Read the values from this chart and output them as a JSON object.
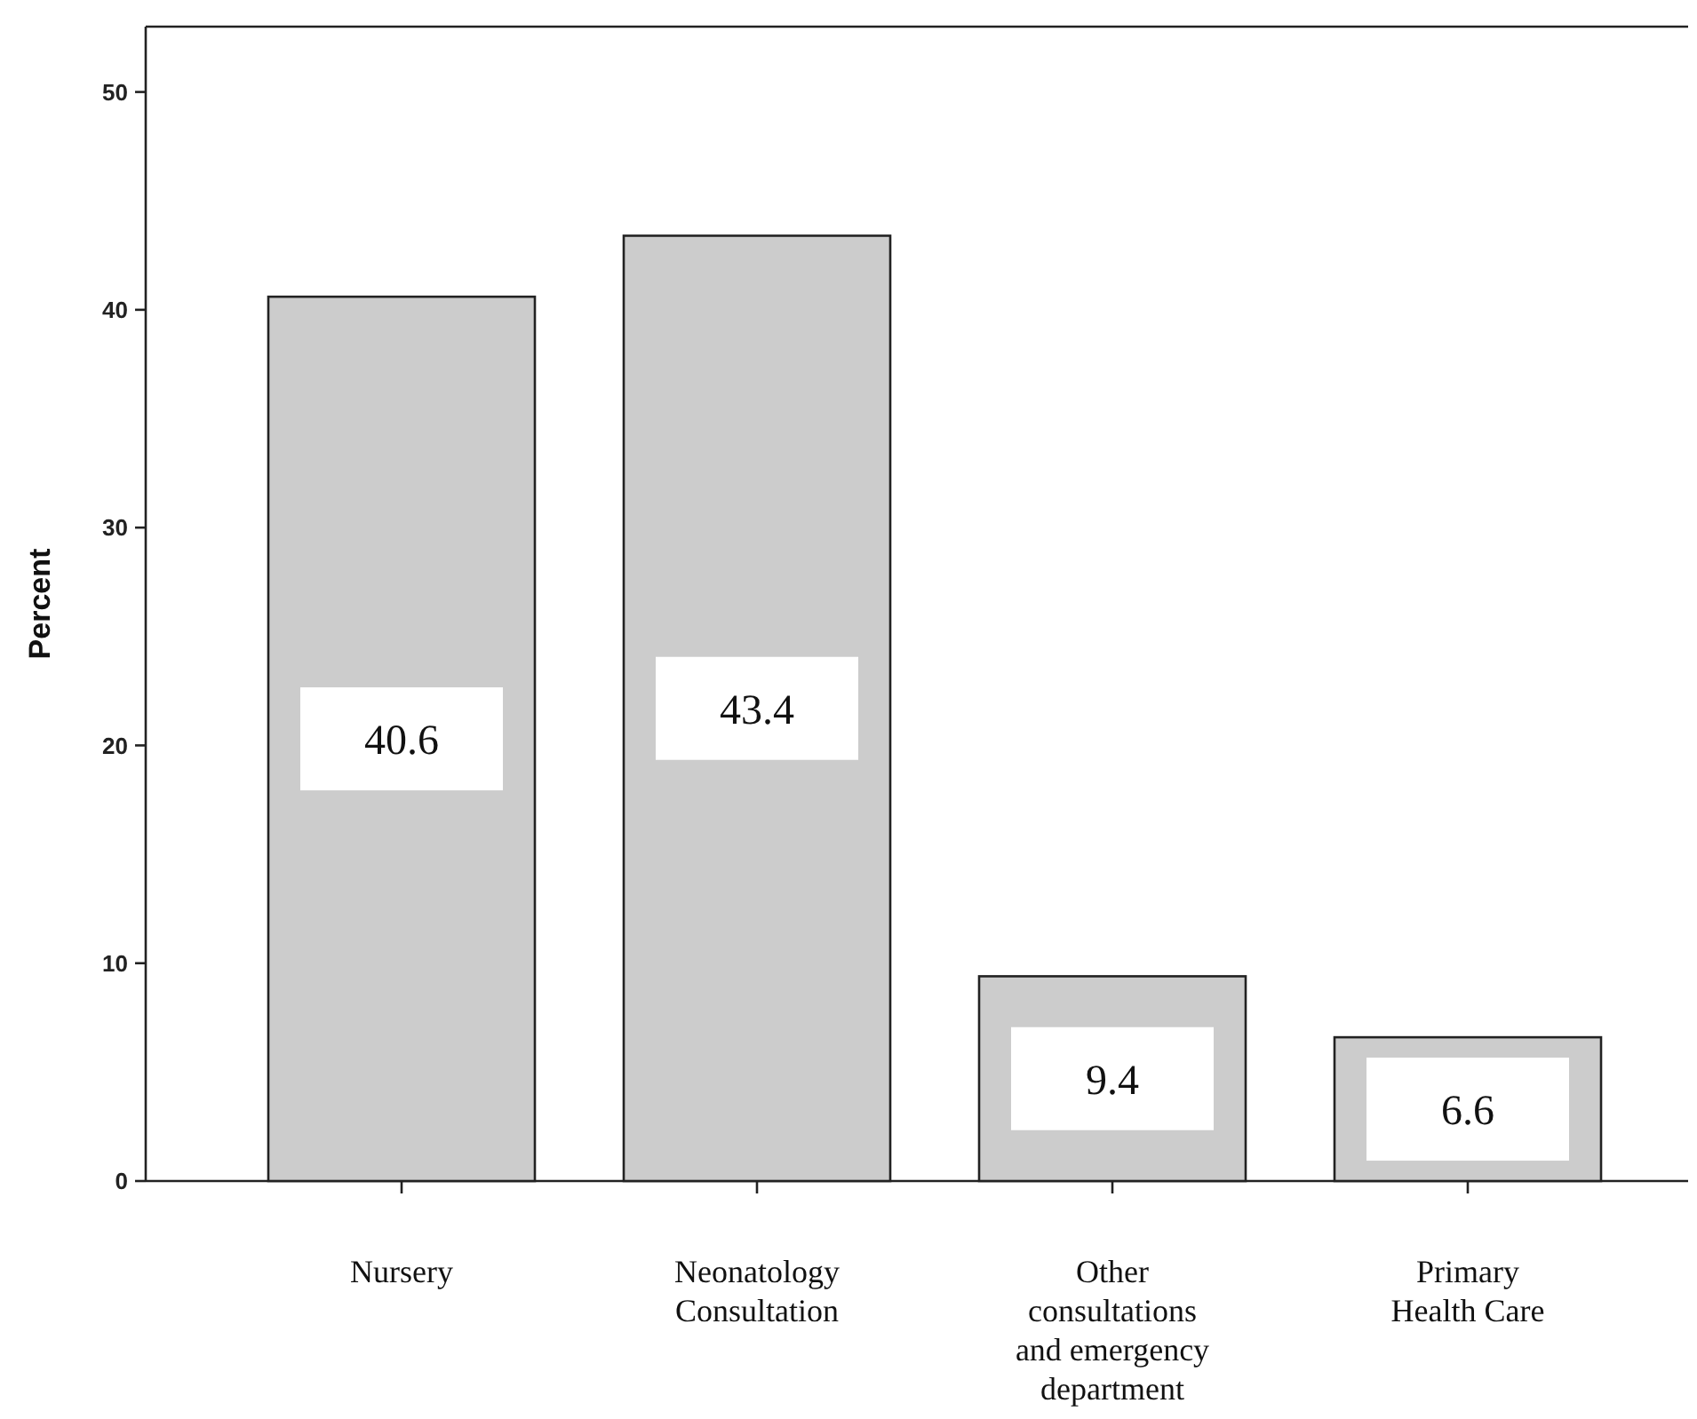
{
  "chart_data": {
    "type": "bar",
    "ylabel": "Percent",
    "categories": [
      "Nursery",
      "Neonatology Consultation",
      "Other consultations and emergency department",
      "Primary Health Care"
    ],
    "values": [
      40.6,
      43.4,
      9.4,
      6.6
    ],
    "color": "#cccccc",
    "ylim": [
      0,
      53
    ],
    "yticks": [
      0,
      10,
      20,
      30,
      40,
      50
    ],
    "data_labels": true,
    "grid": false
  }
}
